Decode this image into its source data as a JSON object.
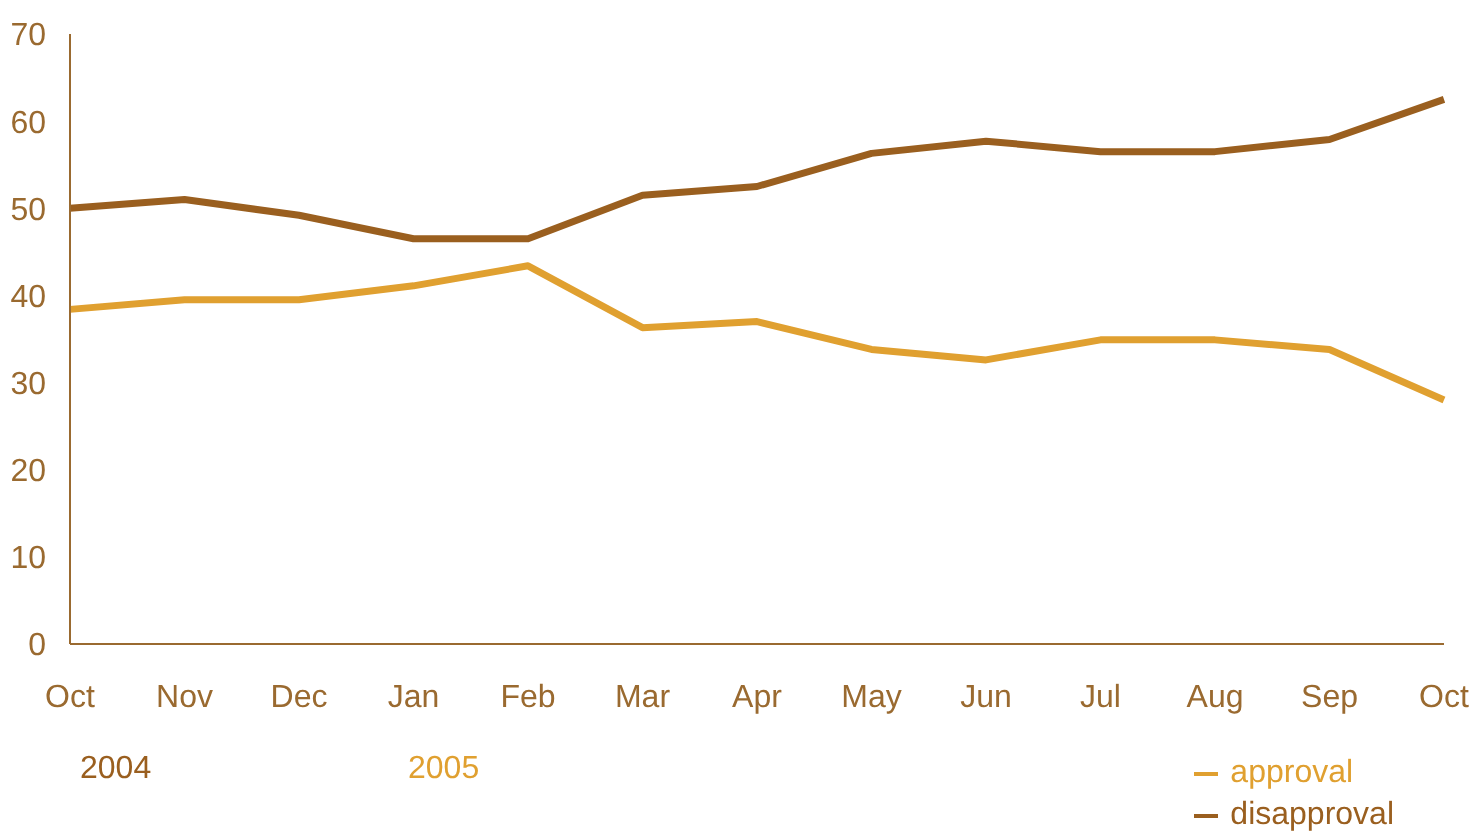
{
  "chart_data": {
    "type": "line",
    "categories": [
      "Oct",
      "Nov",
      "Dec",
      "Jan",
      "Feb",
      "Mar",
      "Apr",
      "May",
      "Jun",
      "Jul",
      "Aug",
      "Sep",
      "Oct"
    ],
    "series": [
      {
        "name": "approval",
        "color": "#e0a030",
        "values": [
          38.4,
          39.5,
          39.5,
          41.1,
          43.4,
          36.3,
          37,
          33.8,
          32.6,
          34.9,
          34.9,
          33.8,
          28
        ]
      },
      {
        "name": "disapproval",
        "color": "#9a5f1f",
        "values": [
          50,
          51,
          49.2,
          46.5,
          46.5,
          51.5,
          52.5,
          56.3,
          57.7,
          56.5,
          56.5,
          57.9,
          62.5
        ]
      }
    ],
    "ylim": [
      0,
      70
    ],
    "yticks": [
      0,
      10,
      20,
      30,
      40,
      50,
      60,
      70
    ],
    "grid": false,
    "legend": "bottom right",
    "marker": "none",
    "line_style": "solid",
    "annotations": [
      "2004",
      "2005"
    ]
  }
}
